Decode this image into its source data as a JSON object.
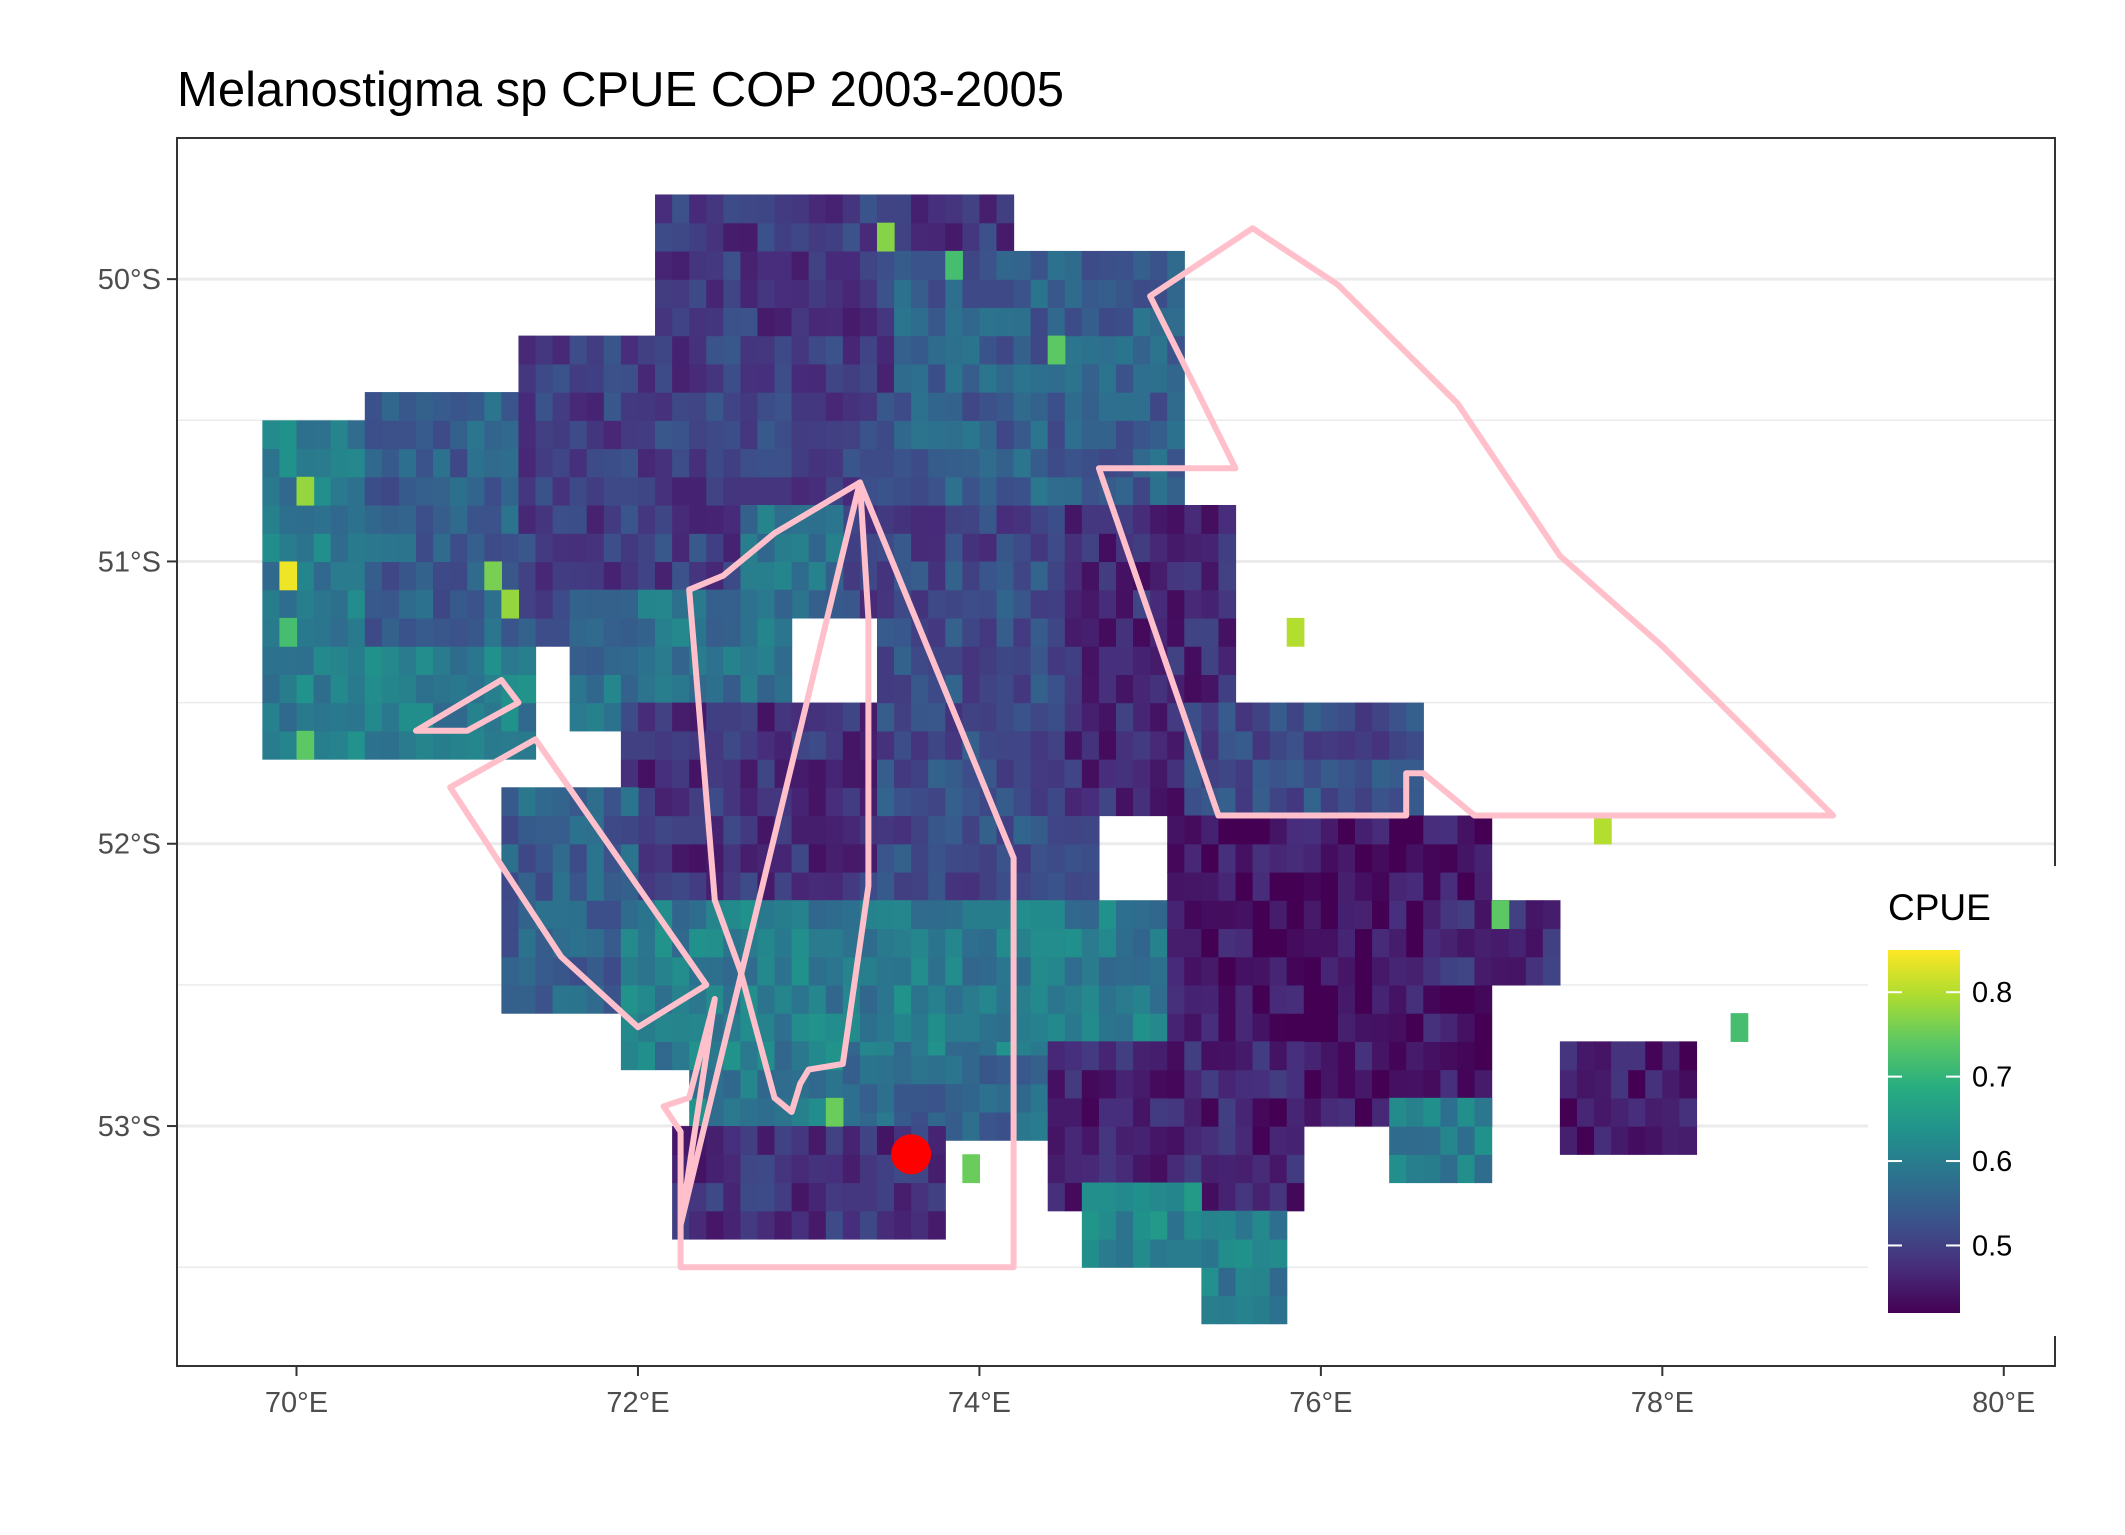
{
  "title": "Melanostigma sp  CPUE COP 2003-2005",
  "colors": {
    "grid": "#ebebeb",
    "panel_border": "#333333",
    "strata_outline": "#ffc0cb",
    "station_marker": "#ff0000",
    "viridis": [
      "#440154",
      "#472d7b",
      "#3b528b",
      "#2c728e",
      "#21918c",
      "#28ae80",
      "#5ec962",
      "#addc30",
      "#fde725"
    ]
  },
  "chart_data": {
    "type": "heatmap",
    "title": "Melanostigma sp  CPUE COP 2003-2005",
    "xlabel": "",
    "ylabel": "",
    "xlim": [
      69.3,
      80.3
    ],
    "ylim": [
      -53.85,
      -49.5
    ],
    "x_ticks": [
      70,
      72,
      74,
      76,
      78,
      80
    ],
    "x_tick_labels": [
      "70°E",
      "72°E",
      "74°E",
      "76°E",
      "78°E",
      "80°E"
    ],
    "y_ticks": [
      -50,
      -51,
      -52,
      -53
    ],
    "y_tick_labels": [
      "50°S",
      "51°S",
      "52°S",
      "53°S"
    ],
    "grid": true,
    "legend": {
      "title": "CPUE",
      "placement": "right",
      "range": [
        0.42,
        0.85
      ],
      "breaks": [
        0.5,
        0.6,
        0.7,
        0.8
      ],
      "break_labels": [
        "0.5",
        "0.6",
        "0.7",
        "0.8"
      ]
    },
    "cell_size": [
      0.1,
      0.1
    ],
    "regions": [
      {
        "lon": [
          69.8,
          71.4
        ],
        "lat": [
          -51.7,
          -50.5
        ],
        "value": 0.6
      },
      {
        "lon": [
          70.4,
          72.3
        ],
        "lat": [
          -51.3,
          -50.4
        ],
        "value": 0.55
      },
      {
        "lon": [
          71.3,
          74.5
        ],
        "lat": [
          -51.2,
          -50.2
        ],
        "value": 0.5
      },
      {
        "lon": [
          72.1,
          74.2
        ],
        "lat": [
          -50.2,
          -49.7
        ],
        "value": 0.49
      },
      {
        "lon": [
          73.5,
          75.2
        ],
        "lat": [
          -50.8,
          -49.9
        ],
        "value": 0.55
      },
      {
        "lon": [
          72.6,
          73.2
        ],
        "lat": [
          -51.2,
          -50.8
        ],
        "value": 0.58
      },
      {
        "lon": [
          71.6,
          72.9
        ],
        "lat": [
          -51.6,
          -51.1
        ],
        "value": 0.58
      },
      {
        "lon": [
          71.9,
          73.6
        ],
        "lat": [
          -52.2,
          -51.5
        ],
        "value": 0.48
      },
      {
        "lon": [
          73.4,
          74.7
        ],
        "lat": [
          -52.2,
          -51.0
        ],
        "value": 0.52
      },
      {
        "lon": [
          74.5,
          75.5
        ],
        "lat": [
          -51.9,
          -50.8
        ],
        "value": 0.47
      },
      {
        "lon": [
          75.2,
          76.6
        ],
        "lat": [
          -52.0,
          -51.5
        ],
        "value": 0.52
      },
      {
        "lon": [
          71.2,
          72.0
        ],
        "lat": [
          -52.6,
          -51.8
        ],
        "value": 0.55
      },
      {
        "lon": [
          71.9,
          75.5
        ],
        "lat": [
          -52.8,
          -52.2
        ],
        "value": 0.6
      },
      {
        "lon": [
          72.3,
          73.2
        ],
        "lat": [
          -53.1,
          -52.7
        ],
        "value": 0.6
      },
      {
        "lon": [
          73.2,
          74.6
        ],
        "lat": [
          -53.05,
          -52.75
        ],
        "value": 0.56
      },
      {
        "lon": [
          75.1,
          77.0
        ],
        "lat": [
          -53.0,
          -51.95
        ],
        "value": 0.44
      },
      {
        "lon": [
          74.4,
          75.9
        ],
        "lat": [
          -53.3,
          -52.7
        ],
        "value": 0.46
      },
      {
        "lon": [
          72.2,
          73.8
        ],
        "lat": [
          -53.4,
          -53.0
        ],
        "value": 0.48
      },
      {
        "lon": [
          76.6,
          77.4
        ],
        "lat": [
          -52.5,
          -52.2
        ],
        "value": 0.47
      },
      {
        "lon": [
          77.4,
          78.2
        ],
        "lat": [
          -53.1,
          -52.7
        ],
        "value": 0.45
      },
      {
        "lon": [
          74.6,
          75.3
        ],
        "lat": [
          -53.5,
          -53.2
        ],
        "value": 0.62
      },
      {
        "lon": [
          75.3,
          75.8
        ],
        "lat": [
          -53.7,
          -53.3
        ],
        "value": 0.6
      },
      {
        "lon": [
          76.4,
          77.0
        ],
        "lat": [
          -53.2,
          -52.9
        ],
        "value": 0.6
      }
    ],
    "highlight_cells": [
      {
        "lon": 69.95,
        "lat": -51.05,
        "value": 0.84
      },
      {
        "lon": 70.05,
        "lat": -50.75,
        "value": 0.78
      },
      {
        "lon": 69.95,
        "lat": -51.25,
        "value": 0.72
      },
      {
        "lon": 70.05,
        "lat": -51.65,
        "value": 0.74
      },
      {
        "lon": 71.15,
        "lat": -51.05,
        "value": 0.76
      },
      {
        "lon": 71.25,
        "lat": -51.15,
        "value": 0.78
      },
      {
        "lon": 73.45,
        "lat": -49.85,
        "value": 0.77
      },
      {
        "lon": 73.85,
        "lat": -49.95,
        "value": 0.72
      },
      {
        "lon": 75.85,
        "lat": -51.25,
        "value": 0.8
      },
      {
        "lon": 77.65,
        "lat": -51.95,
        "value": 0.8
      },
      {
        "lon": 78.45,
        "lat": -52.65,
        "value": 0.72
      },
      {
        "lon": 74.45,
        "lat": -50.25,
        "value": 0.74
      },
      {
        "lon": 73.15,
        "lat": -52.95,
        "value": 0.75
      },
      {
        "lon": 73.95,
        "lat": -53.15,
        "value": 0.75
      },
      {
        "lon": 77.05,
        "lat": -52.25,
        "value": 0.74
      }
    ],
    "strata_polygons": [
      {
        "lon": [
          72.3,
          72.5,
          72.8,
          73.3,
          73.35,
          73.35,
          73.2,
          73.0,
          72.95,
          72.9,
          72.8,
          72.6,
          72.45,
          72.3
        ],
        "lat": [
          -51.1,
          -51.05,
          -50.9,
          -50.72,
          -51.2,
          -52.15,
          -52.78,
          -52.8,
          -52.85,
          -52.95,
          -52.9,
          -52.45,
          -52.2,
          -51.1
        ]
      },
      {
        "lon": [
          72.25,
          72.45,
          72.3,
          72.15,
          72.25,
          72.25,
          74.2,
          74.2,
          73.3,
          72.25
        ],
        "lat": [
          -53.35,
          -52.55,
          -52.9,
          -52.93,
          -53.02,
          -53.5,
          -53.5,
          -52.05,
          -50.72,
          -53.35
        ]
      },
      {
        "lon": [
          71.4,
          72.4,
          72.0,
          71.55,
          70.9,
          71.4
        ],
        "lat": [
          -51.63,
          -52.5,
          -52.65,
          -52.4,
          -51.8,
          -51.63
        ]
      },
      {
        "lon": [
          70.7,
          71.2,
          71.3,
          71.0,
          70.7
        ],
        "lat": [
          -51.6,
          -51.42,
          -51.5,
          -51.6,
          -51.6
        ]
      },
      {
        "lon": [
          74.7,
          75.5,
          75.0,
          75.6,
          76.1,
          76.8,
          77.4,
          78.0,
          78.5,
          79.0,
          77.6,
          76.9,
          76.6,
          76.5,
          76.5,
          75.4,
          74.7
        ],
        "lat": [
          -50.67,
          -50.67,
          -50.06,
          -49.82,
          -50.02,
          -50.44,
          -50.98,
          -51.3,
          -51.6,
          -51.9,
          -51.9,
          -51.9,
          -51.75,
          -51.75,
          -51.9,
          -51.9,
          -50.67
        ]
      }
    ],
    "station_points": [
      {
        "lon": 73.6,
        "lat": -53.1
      }
    ]
  }
}
